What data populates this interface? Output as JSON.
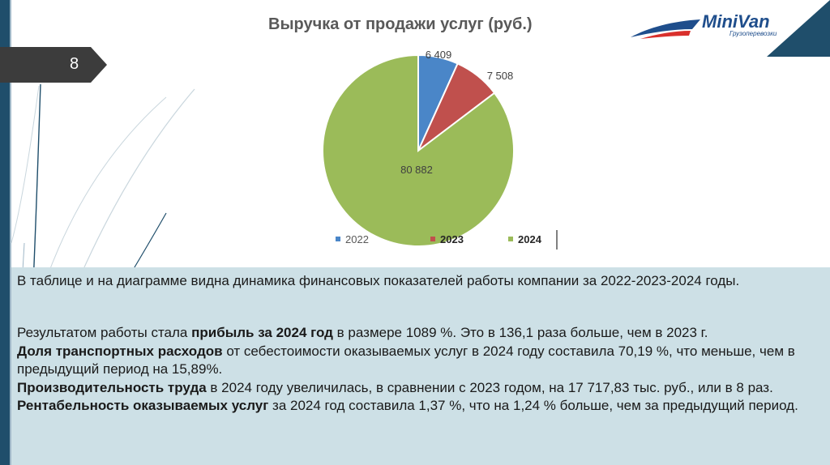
{
  "slide": {
    "number": "8"
  },
  "logo": {
    "name": "MiniVan",
    "tagline": "Грузоперевозки"
  },
  "chart_data": {
    "type": "pie",
    "title": "Выручка от продажи услуг (руб.)",
    "categories": [
      "2022",
      "2023",
      "2024"
    ],
    "values": [
      6409,
      7508,
      80882
    ],
    "data_labels": [
      "6 409",
      "7 508",
      "80 882"
    ],
    "colors": [
      "#4a86c8",
      "#c0504d",
      "#9bbb59"
    ],
    "legend_position": "bottom"
  },
  "text": {
    "intro": "В таблице  и на диаграмме видна динамика финансовых показателей работы компании за 2022-2023-2024 годы.",
    "s1_pre": "Результатом работы стала ",
    "s1_bold": "прибыль за 2024 год",
    "s1_post": "  в размере 1089  %. Это в 136,1 раза больше, чем в 2023 г.",
    "s2_bold": "Доля транспортных расходов",
    "s2_post": " от себестоимости оказываемых услуг в 2024 году составила 70,19 %, что меньше, чем в предыдущий период на 15,89%.",
    "s3_bold": "Производительность труда",
    "s3_post": " в 2024 году увеличилась, в сравнении с 2023 годом, на 17 717,83 тыс. руб., или в 8 раз.",
    "s4_bold": "Рентабельность оказываемых услуг",
    "s4_post": " за 2024 год составила 1,37 %, что на 1,24 % больше, чем за предыдущий период."
  }
}
